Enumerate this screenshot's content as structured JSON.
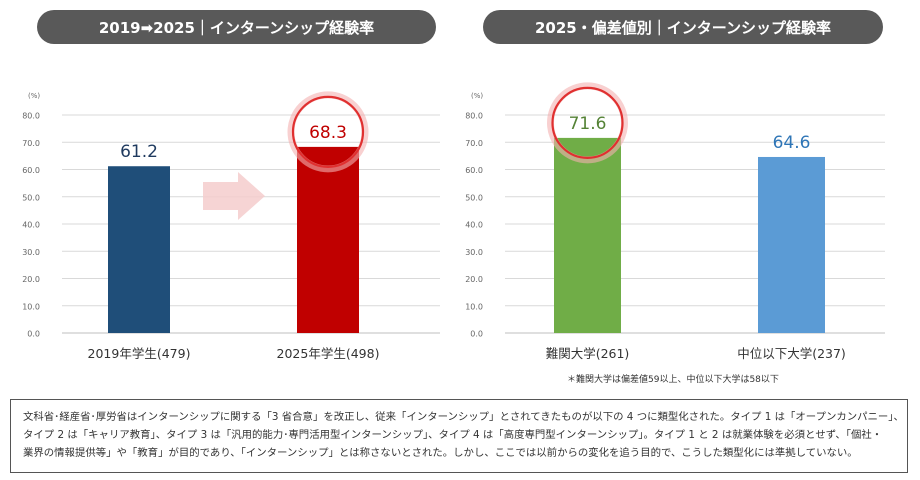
{
  "chart_data": [
    {
      "type": "bar",
      "title": "2019➡2025｜インターンシップ経験率",
      "unit_label": "(%)",
      "ylim": [
        0,
        80
      ],
      "yticks": [
        "0.0",
        "10.0",
        "20.0",
        "30.0",
        "40.0",
        "50.0",
        "60.0",
        "70.0",
        "80.0"
      ],
      "grid": true,
      "categories": [
        "2019年学生(479)",
        "2025年学生(498)"
      ],
      "values": [
        61.2,
        68.3
      ],
      "value_labels": [
        "61.2",
        "68.3"
      ],
      "colors": [
        "#1f4e79",
        "#c00000"
      ],
      "label_colors": [
        "#1f3a5f",
        "#c00000"
      ],
      "highlight_index": 1,
      "arrow_color": "#f4cccc"
    },
    {
      "type": "bar",
      "title": "2025・偏差値別｜インターンシップ経験率",
      "unit_label": "(%)",
      "ylim": [
        0,
        80
      ],
      "yticks": [
        "0.0",
        "10.0",
        "20.0",
        "30.0",
        "40.0",
        "50.0",
        "60.0",
        "70.0",
        "80.0"
      ],
      "grid": true,
      "categories": [
        "難関大学(261)",
        "中位以下大学(237)"
      ],
      "values": [
        71.6,
        64.6
      ],
      "value_labels": [
        "71.6",
        "64.6"
      ],
      "colors": [
        "#70ad47",
        "#5b9bd5"
      ],
      "label_colors": [
        "#548235",
        "#2e75b6"
      ],
      "highlight_index": 0
    }
  ],
  "footnote": "＊難関大学は偏差値59以上、中位以下大学は58以下",
  "note": {
    "line1": "文科省･経産省･厚労省はインターンシップに関する「3 省合意」を改正し、従来「インターンシップ」とされてきたものが以下の 4 つに類型化された。タイプ 1 は「オープンカンパニー」、",
    "line2": "タイプ 2 は「キャリア教育」、タイプ 3 は「汎用的能力･専門活用型インターンシップ」、タイプ 4 は「高度専門型インターンシップ」。タイプ 1 と 2 は就業体験を必須とせず、「個社・",
    "line3": "業界の情報提供等」や「教育」が目的であり、「インターンシップ」とは称さないとされた。しかし、ここでは以前からの変化を追う目的で、こうした類型化には準拠していない。"
  },
  "colors": {
    "pill_bg": "#595959",
    "highlight_circle": "#e03030",
    "grid": "#d9d9d9"
  }
}
